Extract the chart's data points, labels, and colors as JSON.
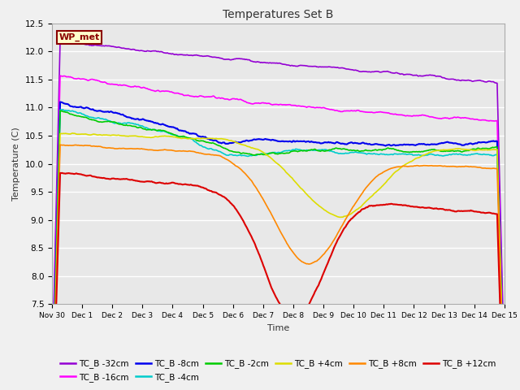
{
  "title": "Temperatures Set B",
  "xlabel": "Time",
  "ylabel": "Temperature (C)",
  "ylim": [
    7.5,
    12.5
  ],
  "plot_bg": "#e8e8e8",
  "fig_bg": "#f0f0f0",
  "grid_color": "#ffffff",
  "annotation_text": "WP_met",
  "annotation_bg": "#ffffcc",
  "annotation_border": "#8B0000",
  "x_tick_labels": [
    "Nov 30",
    "Dec 1",
    "Dec 2",
    "Dec 3",
    "Dec 4",
    "Dec 5",
    "Dec 6",
    "Dec 7",
    "Dec 8",
    "Dec 9",
    "Dec 10",
    "Dec 11",
    "Dec 12",
    "Dec 13",
    "Dec 14",
    "Dec 15"
  ],
  "series": [
    {
      "label": "TC_B -32cm",
      "color": "#9400D3",
      "lw": 1.2
    },
    {
      "label": "TC_B -16cm",
      "color": "#FF00FF",
      "lw": 1.2
    },
    {
      "label": "TC_B -8cm",
      "color": "#0000EE",
      "lw": 1.5
    },
    {
      "label": "TC_B -4cm",
      "color": "#00CCCC",
      "lw": 1.2
    },
    {
      "label": "TC_B -2cm",
      "color": "#00CC00",
      "lw": 1.2
    },
    {
      "label": "TC_B +4cm",
      "color": "#DDDD00",
      "lw": 1.2
    },
    {
      "label": "TC_B +8cm",
      "color": "#FF8800",
      "lw": 1.2
    },
    {
      "label": "TC_B +12cm",
      "color": "#DD0000",
      "lw": 1.5
    }
  ],
  "n_points": 500,
  "seed": 42
}
